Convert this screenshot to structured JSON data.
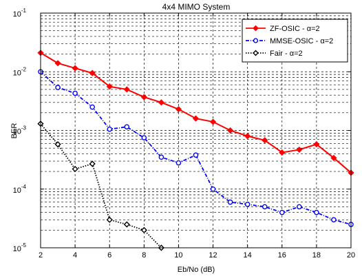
{
  "chart_data": {
    "type": "line",
    "title": "4x4 MIMO System",
    "xlabel": "Eb/No (dB)",
    "ylabel": "BER",
    "xlim": [
      2,
      20
    ],
    "ylim": [
      1e-05,
      0.1
    ],
    "yscale": "log",
    "grid": true,
    "legend_position": "top-right",
    "xticks": [
      "2",
      "4",
      "6",
      "8",
      "10",
      "12",
      "14",
      "16",
      "18",
      "20"
    ],
    "yticks": [
      {
        "base": "10",
        "exp": "-1"
      },
      {
        "base": "10",
        "exp": "-2"
      },
      {
        "base": "10",
        "exp": "-3"
      },
      {
        "base": "10",
        "exp": "-4"
      },
      {
        "base": "10",
        "exp": "-5"
      }
    ],
    "series": [
      {
        "name": "ZF-OSIC - α=2",
        "color": "#ff0000",
        "line_style": "solid",
        "marker": "diamond",
        "x": [
          2,
          3,
          4,
          5,
          6,
          7,
          8,
          9,
          10,
          11,
          12,
          13,
          14,
          15,
          16,
          17,
          18,
          19,
          20
        ],
        "y": [
          0.021,
          0.014,
          0.0115,
          0.0095,
          0.0056,
          0.005,
          0.0037,
          0.003,
          0.0023,
          0.0016,
          0.0014,
          0.001,
          0.0008,
          0.00068,
          0.00042,
          0.00047,
          0.00058,
          0.00034,
          0.00019
        ]
      },
      {
        "name": "MMSE-OSIC - α=2",
        "color": "#0000ff",
        "line_style": "dashdot",
        "marker": "circle",
        "x": [
          2,
          3,
          4,
          5,
          6,
          7,
          8,
          9,
          10,
          11,
          12,
          13,
          14,
          15,
          16,
          17,
          18,
          19,
          20
        ],
        "y": [
          0.01,
          0.0054,
          0.0043,
          0.0025,
          0.00105,
          0.00115,
          0.00075,
          0.00035,
          0.00028,
          0.00038,
          0.0001,
          6e-05,
          5.5e-05,
          5e-05,
          4e-05,
          5e-05,
          4e-05,
          3e-05,
          2.5e-05
        ]
      },
      {
        "name": "Fair - α=2",
        "color": "#000000",
        "line_style": "dotted",
        "marker": "diamond",
        "x": [
          2,
          3,
          4,
          5,
          6,
          7,
          8,
          9
        ],
        "y": [
          0.0013,
          0.00058,
          0.00022,
          0.00027,
          3e-05,
          2.5e-05,
          2e-05,
          1e-05
        ]
      }
    ]
  }
}
